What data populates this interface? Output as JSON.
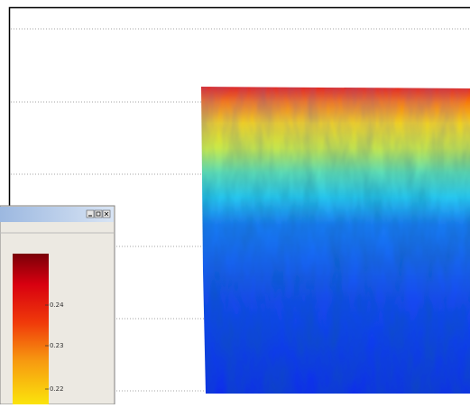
{
  "colorbar_window": {
    "ticks": [
      "0.24",
      "0.23",
      "0.22"
    ]
  }
}
